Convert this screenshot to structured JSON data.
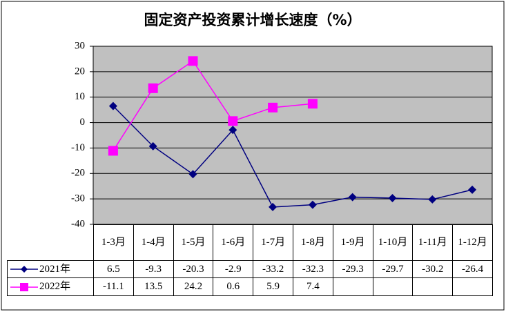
{
  "chart_data": {
    "type": "line",
    "title": "固定资产投资累计增长速度（%）",
    "categories": [
      "1-3月",
      "1-4月",
      "1-5月",
      "1-6月",
      "1-7月",
      "1-8月",
      "1-9月",
      "1-10月",
      "1-11月",
      "1-12月"
    ],
    "series": [
      {
        "name": "2021年",
        "color": "#000080",
        "marker": "diamond",
        "values": [
          6.5,
          -9.3,
          -20.3,
          -2.9,
          -33.2,
          -32.3,
          -29.3,
          -29.7,
          -30.2,
          -26.4
        ]
      },
      {
        "name": "2022年",
        "color": "#ff00ff",
        "marker": "square",
        "values": [
          -11.1,
          13.5,
          24.2,
          0.6,
          5.9,
          7.4,
          null,
          null,
          null,
          null
        ]
      }
    ],
    "ylim": [
      -40,
      30
    ],
    "yticks": [
      30,
      20,
      10,
      0,
      -10,
      -20,
      -30,
      -40
    ],
    "grid": true,
    "data_table": true
  }
}
